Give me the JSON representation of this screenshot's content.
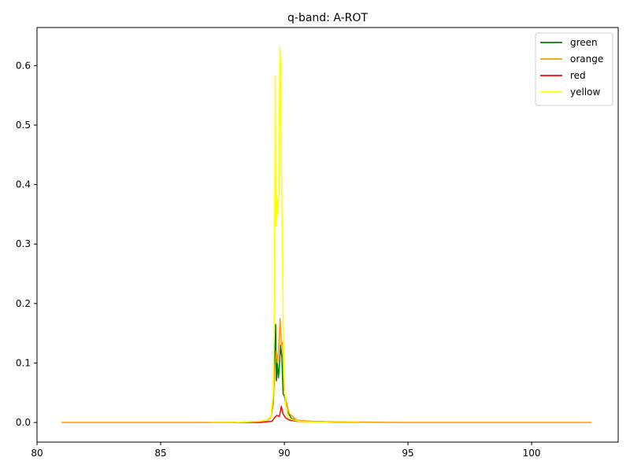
{
  "chart_data": {
    "type": "line",
    "title": "q-band: A-ROT",
    "xlabel": "",
    "ylabel": "",
    "xlim": [
      80,
      103.5
    ],
    "ylim": [
      -0.033,
      0.664
    ],
    "xticks": [
      80,
      85,
      90,
      95,
      100
    ],
    "yticks": [
      0.0,
      0.1,
      0.2,
      0.3,
      0.4,
      0.5,
      0.6
    ],
    "xtick_labels": [
      "80",
      "85",
      "90",
      "95",
      "100"
    ],
    "ytick_labels": [
      "0.0",
      "0.1",
      "0.2",
      "0.3",
      "0.4",
      "0.5",
      "0.6"
    ],
    "grid": false,
    "legend_position": "top-right",
    "series": [
      {
        "name": "green",
        "color": "#008000",
        "x": [
          87.0,
          88.0,
          89.0,
          89.3,
          89.45,
          89.55,
          89.6,
          89.65,
          89.68,
          89.72,
          89.76,
          89.8,
          89.85,
          89.9,
          89.95,
          90.0,
          90.1,
          90.3,
          90.6,
          91.0,
          92.0,
          93.0
        ],
        "y": [
          0.0,
          0.0,
          0.002,
          0.004,
          0.01,
          0.03,
          0.08,
          0.165,
          0.07,
          0.1,
          0.075,
          0.095,
          0.13,
          0.11,
          0.048,
          0.045,
          0.02,
          0.006,
          0.003,
          0.002,
          0.0,
          0.0
        ]
      },
      {
        "name": "orange",
        "color": "#ff9900",
        "x": [
          81.0,
          85.0,
          88.0,
          89.0,
          89.3,
          89.45,
          89.55,
          89.62,
          89.68,
          89.73,
          89.78,
          89.83,
          89.88,
          89.93,
          89.98,
          90.05,
          90.2,
          90.5,
          91.0,
          92.0,
          95.0,
          100.0,
          102.4
        ],
        "y": [
          0.0,
          0.0,
          0.0,
          0.001,
          0.003,
          0.008,
          0.03,
          0.095,
          0.12,
          0.1,
          0.13,
          0.175,
          0.13,
          0.135,
          0.06,
          0.04,
          0.015,
          0.004,
          0.002,
          0.001,
          0.0,
          0.0,
          0.0
        ]
      },
      {
        "name": "red",
        "color": "#ff0000",
        "x": [
          87.0,
          88.0,
          89.0,
          89.5,
          89.6,
          89.7,
          89.8,
          89.88,
          89.95,
          90.05,
          90.2,
          90.5,
          91.0,
          92.0,
          93.0
        ],
        "y": [
          0.0,
          0.0,
          0.0,
          0.002,
          0.008,
          0.012,
          0.01,
          0.027,
          0.014,
          0.008,
          0.004,
          0.002,
          0.001,
          0.0,
          0.0
        ]
      },
      {
        "name": "yellow",
        "color": "#ffff00",
        "x": [
          87.0,
          88.0,
          89.0,
          89.3,
          89.45,
          89.55,
          89.6,
          89.63,
          89.66,
          89.7,
          89.74,
          89.78,
          89.82,
          89.85,
          89.88,
          89.91,
          89.94,
          89.97,
          90.0,
          90.05,
          90.15,
          90.3,
          90.6,
          91.0,
          92.0,
          93.0
        ],
        "y": [
          0.0,
          0.0,
          0.002,
          0.004,
          0.01,
          0.05,
          0.2,
          0.583,
          0.33,
          0.38,
          0.35,
          0.39,
          0.632,
          0.6,
          0.45,
          0.33,
          0.22,
          0.12,
          0.07,
          0.03,
          0.01,
          0.005,
          0.002,
          0.001,
          0.0,
          0.0
        ]
      }
    ]
  }
}
